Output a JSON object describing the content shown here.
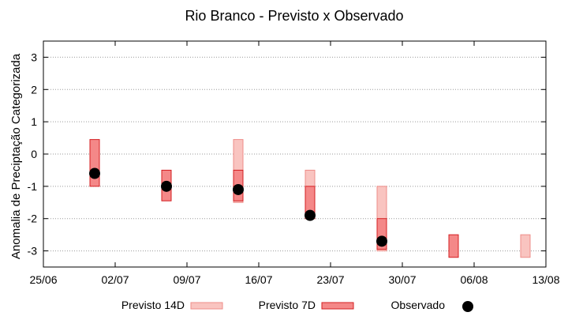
{
  "chart_data": {
    "type": "bar",
    "title": "Rio Branco - Previsto x Observado",
    "xlabel": "",
    "ylabel": "Anomalia de Preciptação Categorizada",
    "ylim": [
      -3.5,
      3.5
    ],
    "yticks": [
      3,
      2,
      1,
      0,
      -1,
      -2,
      -3
    ],
    "xlim": [
      "2025-06-25",
      "2025-08-13"
    ],
    "xticks": [
      "25/06",
      "02/07",
      "09/07",
      "16/07",
      "23/07",
      "30/07",
      "06/08",
      "13/08"
    ],
    "grid": true,
    "legend_position": "bottom",
    "series": [
      {
        "name": "Previsto 14D",
        "color": "#f9c4c0",
        "edge": "#ee8c88",
        "ranges": [
          {
            "date": "2025-07-14",
            "low": -1.5,
            "high": 0.45
          },
          {
            "date": "2025-07-21",
            "low": -2.0,
            "high": -0.5
          },
          {
            "date": "2025-07-28",
            "low": -3.0,
            "high": -1.0
          },
          {
            "date": "2025-08-11",
            "low": -3.2,
            "high": -2.5
          }
        ]
      },
      {
        "name": "Previsto 7D",
        "color": "#f48888",
        "edge": "#d41f22",
        "ranges": [
          {
            "date": "2025-06-30",
            "low": -1.0,
            "high": 0.45
          },
          {
            "date": "2025-07-07",
            "low": -1.45,
            "high": -0.5
          },
          {
            "date": "2025-07-14",
            "low": -1.45,
            "high": -0.5
          },
          {
            "date": "2025-07-21",
            "low": -2.0,
            "high": -1.0
          },
          {
            "date": "2025-07-28",
            "low": -2.95,
            "high": -2.0
          },
          {
            "date": "2025-08-04",
            "low": -3.2,
            "high": -2.5
          }
        ]
      },
      {
        "name": "Observado",
        "color": "#000000",
        "points": [
          {
            "date": "2025-06-30",
            "value": -0.6
          },
          {
            "date": "2025-07-07",
            "value": -1.0
          },
          {
            "date": "2025-07-14",
            "value": -1.1
          },
          {
            "date": "2025-07-21",
            "value": -1.9
          },
          {
            "date": "2025-07-28",
            "value": -2.7
          }
        ]
      }
    ]
  }
}
